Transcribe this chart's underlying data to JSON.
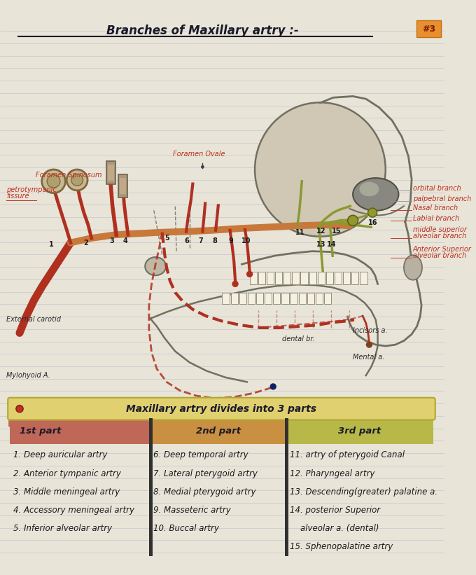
{
  "title": "Branches of Maxillary artry :-",
  "page_number": "#3",
  "bg_color": "#e8e4d8",
  "line_color": "#c0c4d0",
  "header_subtitle": "Maxillary artry divides into 3 parts",
  "col1_header": "1st part",
  "col2_header": "2nd part",
  "col3_header": "3rd part",
  "col1_bg": "#c87070",
  "col2_bg": "#d4a050",
  "col3_bg": "#c8c065",
  "col1_items": [
    "1. Deep auricular artry",
    "2. Anterior tympanic artry",
    "3. Middle meningeal artry",
    "4. Accessory meningeal artry",
    "5. Inferior alveolar artry"
  ],
  "col2_items": [
    "6. Deep temporal artry",
    "7. Lateral pterygoid artry",
    "8. Medial pterygoid artry",
    "9. Masseteric artry",
    "10. Buccal artry"
  ],
  "col3_lines": [
    "11. artry of pterygoid Canal",
    "12. Pharyngeal artry",
    "13. Descending(greater) palatine a.",
    "14. posterior Superior",
    "    alveolar a. (dental)",
    "15. Sphenopalatine artry"
  ],
  "figsize": [
    6.8,
    8.21
  ],
  "dpi": 100
}
